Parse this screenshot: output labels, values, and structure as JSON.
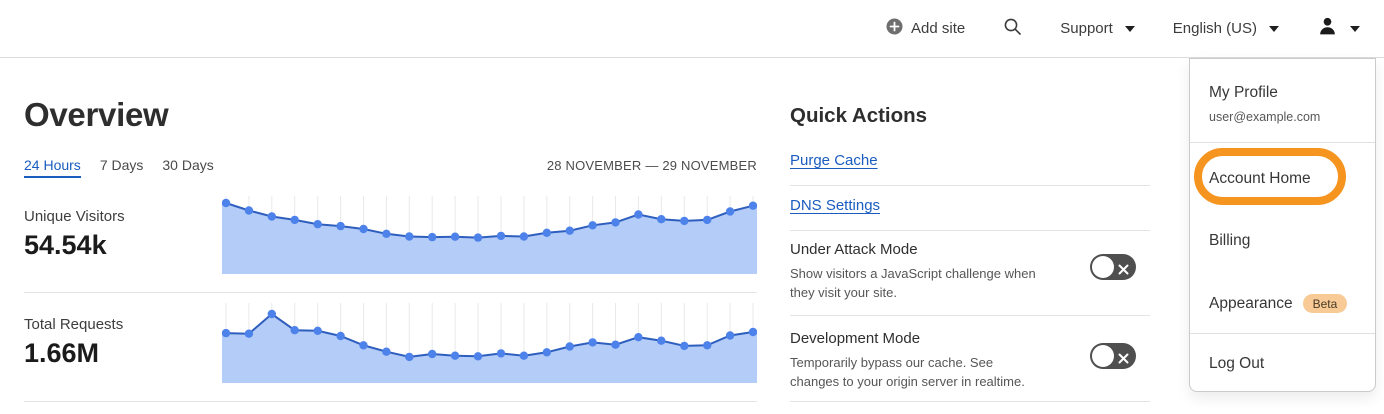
{
  "header": {
    "add_site": "Add site",
    "support": "Support",
    "language": "English (US)",
    "icons": {
      "add_site": "plus-in-circle-icon",
      "search": "magnifier-icon",
      "dropdown": "caret-down-icon",
      "user": "person-silhouette-icon"
    }
  },
  "overview": {
    "title": "Overview",
    "tabs": [
      {
        "label": "24 Hours",
        "active": true
      },
      {
        "label": "7 Days",
        "active": false
      },
      {
        "label": "30 Days",
        "active": false
      }
    ],
    "date_range": "28 NOVEMBER — 29 NOVEMBER",
    "metrics": [
      {
        "label": "Unique Visitors",
        "value": "54.54k"
      },
      {
        "label": "Total Requests",
        "value": "1.66M"
      }
    ]
  },
  "quick_actions": {
    "title": "Quick Actions",
    "links": [
      "Purge Cache",
      "DNS Settings"
    ],
    "toggles": [
      {
        "title": "Under Attack Mode",
        "description": "Show visitors a JavaScript challenge when they visit your site.",
        "state": "off"
      },
      {
        "title": "Development Mode",
        "description": "Temporarily bypass our cache. See changes to your origin server in realtime.",
        "state": "off"
      }
    ]
  },
  "user_menu": {
    "profile_label": "My Profile",
    "email": "user@example.com",
    "items": [
      "Account Home",
      "Billing",
      "Appearance",
      "Log Out"
    ],
    "beta_badge": "Beta",
    "highlighted_item": "Account Home",
    "highlight_style": "thick orange rounded ring annotation"
  },
  "chart_data": [
    {
      "type": "area",
      "title": "Unique Visitors (24 Hours)",
      "unit": "thousands of visitors per interval (estimated, no y-axis labels shown)",
      "points": 24,
      "x": "24 equal intervals, 28 November – 29 November (no x tick labels shown)",
      "values": [
        3.41,
        3.05,
        2.76,
        2.6,
        2.39,
        2.3,
        2.16,
        1.93,
        1.8,
        1.77,
        1.79,
        1.75,
        1.83,
        1.8,
        1.98,
        2.08,
        2.34,
        2.48,
        2.86,
        2.63,
        2.55,
        2.6,
        3.0,
        3.28
      ],
      "total_displayed": "54.54k",
      "ylim": [
        0,
        3.5
      ],
      "grid": "vertical gridlines at each point",
      "legend": "none"
    },
    {
      "type": "area",
      "title": "Total Requests (24 Hours)",
      "unit": "thousands of requests per interval (estimated, no y-axis labels shown)",
      "points": 24,
      "x": "24 equal intervals, 28 November – 29 November (no x tick labels shown)",
      "values": [
        86,
        85,
        119,
        91,
        90,
        81,
        65,
        54,
        45,
        50,
        47,
        46,
        51,
        47,
        53,
        63,
        70,
        66,
        79,
        73,
        64,
        65,
        82,
        88
      ],
      "total_displayed": "1.66M",
      "ylim": [
        0,
        125
      ],
      "grid": "vertical gridlines at each point",
      "legend": "none"
    }
  ],
  "colors": {
    "accent_blue": "#1a5cbf",
    "chart_line": "#2e5ebe",
    "chart_fill": "#b3ccf8",
    "chart_dot": "#4d82ea",
    "chart_grid": "#e9e9e9",
    "toggle_off_bg": "#4f4f4f",
    "annotation_orange": "#f5941f",
    "beta_badge_bg": "#f7ca96",
    "beta_badge_text": "#4a3a26"
  }
}
